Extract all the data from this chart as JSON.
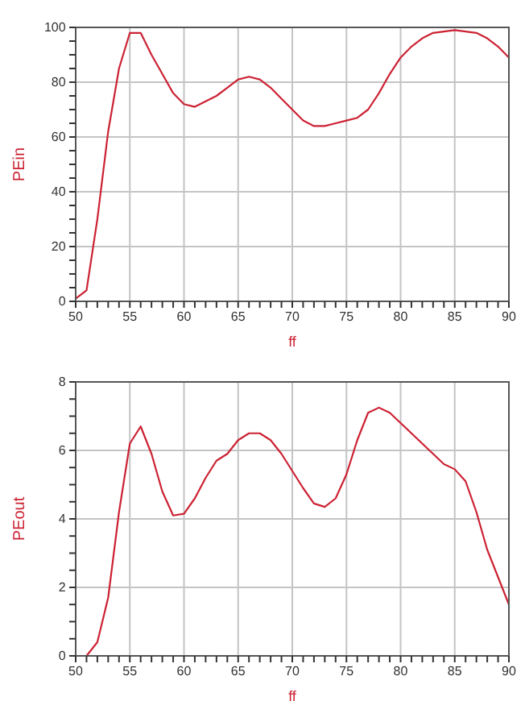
{
  "chart_data": [
    {
      "type": "line",
      "xlabel": "ff",
      "ylabel": "PEin",
      "grid": true,
      "marker": "none",
      "line_style": "solid",
      "xlim": [
        50,
        90
      ],
      "ylim": [
        0,
        100
      ],
      "xticks": [
        50,
        {
          "value": 51,
          "label": null
        },
        {
          "value": 52,
          "label": null
        },
        {
          "value": 53,
          "label": null
        },
        {
          "value": 54,
          "label": null
        },
        55,
        {
          "value": 56,
          "label": null
        },
        {
          "value": 57,
          "label": null
        },
        {
          "value": 58,
          "label": null
        },
        {
          "value": 59,
          "label": null
        },
        60,
        {
          "value": 61,
          "label": null
        },
        {
          "value": 62,
          "label": null
        },
        {
          "value": 63,
          "label": null
        },
        {
          "value": 64,
          "label": null
        },
        65,
        {
          "value": 66,
          "label": null
        },
        {
          "value": 67,
          "label": null
        },
        {
          "value": 68,
          "label": null
        },
        {
          "value": 69,
          "label": null
        },
        70,
        {
          "value": 71,
          "label": null
        },
        {
          "value": 72,
          "label": null
        },
        {
          "value": 73,
          "label": null
        },
        {
          "value": 74,
          "label": null
        },
        75,
        {
          "value": 76,
          "label": null
        },
        {
          "value": 77,
          "label": null
        },
        {
          "value": 78,
          "label": null
        },
        {
          "value": 79,
          "label": null
        },
        80,
        {
          "value": 81,
          "label": null
        },
        {
          "value": 82,
          "label": null
        },
        {
          "value": 83,
          "label": null
        },
        {
          "value": 84,
          "label": null
        },
        85,
        {
          "value": 86,
          "label": null
        },
        {
          "value": 87,
          "label": null
        },
        {
          "value": 88,
          "label": null
        },
        {
          "value": 89,
          "label": null
        },
        90
      ],
      "yticks": [
        0,
        {
          "value": 5,
          "label": null
        },
        {
          "value": 10,
          "label": null
        },
        {
          "value": 15,
          "label": null
        },
        20,
        {
          "value": 25,
          "label": null
        },
        {
          "value": 30,
          "label": null
        },
        {
          "value": 35,
          "label": null
        },
        40,
        {
          "value": 45,
          "label": null
        },
        {
          "value": 50,
          "label": null
        },
        {
          "value": 55,
          "label": null
        },
        60,
        {
          "value": 65,
          "label": null
        },
        {
          "value": 70,
          "label": null
        },
        {
          "value": 75,
          "label": null
        },
        80,
        {
          "value": 85,
          "label": null
        },
        {
          "value": 90,
          "label": null
        },
        {
          "value": 95,
          "label": null
        },
        100
      ],
      "x": [
        50,
        51,
        52,
        53,
        54,
        55,
        56,
        57,
        58,
        59,
        60,
        61,
        62,
        63,
        64,
        65,
        66,
        67,
        68,
        69,
        70,
        71,
        72,
        73,
        74,
        75,
        76,
        77,
        78,
        79,
        80,
        81,
        82,
        83,
        84,
        85,
        86,
        87,
        88,
        89,
        90
      ],
      "series": [
        {
          "color": "#cc2233",
          "values": [
            1,
            4,
            30,
            62,
            85,
            98,
            98,
            90,
            83,
            76,
            72,
            71,
            73,
            75,
            78,
            81,
            82,
            81,
            78,
            74,
            70,
            66,
            64,
            64,
            65,
            66,
            67,
            70,
            76,
            83,
            89,
            93,
            96,
            98,
            98.5,
            99,
            98.5,
            98,
            96,
            93,
            89
          ]
        }
      ]
    },
    {
      "type": "line",
      "xlabel": "ff",
      "ylabel": "PEout",
      "grid": true,
      "marker": "none",
      "line_style": "solid",
      "xlim": [
        50,
        90
      ],
      "ylim": [
        0,
        8
      ],
      "xticks": [
        50,
        {
          "value": 51,
          "label": null
        },
        {
          "value": 52,
          "label": null
        },
        {
          "value": 53,
          "label": null
        },
        {
          "value": 54,
          "label": null
        },
        55,
        {
          "value": 56,
          "label": null
        },
        {
          "value": 57,
          "label": null
        },
        {
          "value": 58,
          "label": null
        },
        {
          "value": 59,
          "label": null
        },
        60,
        {
          "value": 61,
          "label": null
        },
        {
          "value": 62,
          "label": null
        },
        {
          "value": 63,
          "label": null
        },
        {
          "value": 64,
          "label": null
        },
        65,
        {
          "value": 66,
          "label": null
        },
        {
          "value": 67,
          "label": null
        },
        {
          "value": 68,
          "label": null
        },
        {
          "value": 69,
          "label": null
        },
        70,
        {
          "value": 71,
          "label": null
        },
        {
          "value": 72,
          "label": null
        },
        {
          "value": 73,
          "label": null
        },
        {
          "value": 74,
          "label": null
        },
        75,
        {
          "value": 76,
          "label": null
        },
        {
          "value": 77,
          "label": null
        },
        {
          "value": 78,
          "label": null
        },
        {
          "value": 79,
          "label": null
        },
        80,
        {
          "value": 81,
          "label": null
        },
        {
          "value": 82,
          "label": null
        },
        {
          "value": 83,
          "label": null
        },
        {
          "value": 84,
          "label": null
        },
        85,
        {
          "value": 86,
          "label": null
        },
        {
          "value": 87,
          "label": null
        },
        {
          "value": 88,
          "label": null
        },
        {
          "value": 89,
          "label": null
        },
        90
      ],
      "yticks": [
        0,
        {
          "value": 0.5,
          "label": null
        },
        {
          "value": 1,
          "label": null
        },
        {
          "value": 1.5,
          "label": null
        },
        2,
        {
          "value": 2.5,
          "label": null
        },
        {
          "value": 3,
          "label": null
        },
        {
          "value": 3.5,
          "label": null
        },
        4,
        {
          "value": 4.5,
          "label": null
        },
        {
          "value": 5,
          "label": null
        },
        {
          "value": 5.5,
          "label": null
        },
        6,
        {
          "value": 6.5,
          "label": null
        },
        {
          "value": 7,
          "label": null
        },
        {
          "value": 7.5,
          "label": null
        },
        8
      ],
      "x": [
        50,
        51,
        52,
        53,
        54,
        55,
        56,
        57,
        58,
        59,
        60,
        61,
        62,
        63,
        64,
        65,
        66,
        67,
        68,
        69,
        70,
        71,
        72,
        73,
        74,
        75,
        76,
        77,
        78,
        79,
        80,
        81,
        82,
        83,
        84,
        85,
        86,
        87,
        88,
        89,
        90
      ],
      "series": [
        {
          "color": "#cc2233",
          "values": [
            0,
            0,
            0.4,
            1.7,
            4.2,
            6.2,
            6.7,
            5.9,
            4.8,
            4.1,
            4.15,
            4.6,
            5.2,
            5.7,
            5.9,
            6.3,
            6.5,
            6.5,
            6.3,
            5.9,
            5.4,
            4.9,
            4.45,
            4.35,
            4.6,
            5.3,
            6.3,
            7.1,
            7.25,
            7.1,
            6.8,
            6.5,
            6.2,
            5.9,
            5.6,
            5.45,
            5.1,
            4.2,
            3.1,
            2.3,
            1.5
          ]
        }
      ]
    }
  ]
}
